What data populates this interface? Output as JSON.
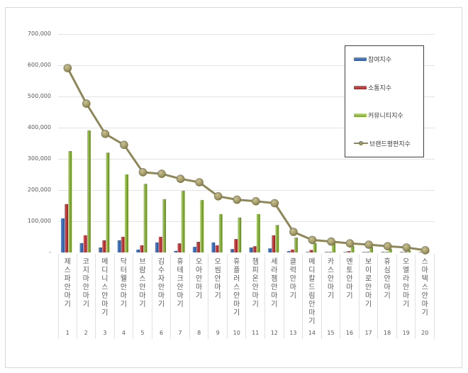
{
  "chart_data": {
    "type": "bar",
    "title": "",
    "xlabel": "",
    "ylabel": "",
    "ylim": [
      0,
      700000
    ],
    "grid": true,
    "legend_position": "right-top-inside",
    "yticks": [
      "-",
      "100,000",
      "200,000",
      "300,000",
      "400,000",
      "500,000",
      "600,000",
      "700,000"
    ],
    "ytick_values": [
      0,
      100000,
      200000,
      300000,
      400000,
      500000,
      600000,
      700000
    ],
    "categories": [
      "제스파 안마기",
      "코지마 안마기",
      "메디니스 안마기",
      "닥터웰 안마기",
      "브람스 안마기",
      "김수자 안마기",
      "휴테크 안마기",
      "오아 안마기",
      "오씸 안마기",
      "휴플러스 안마기",
      "챔피온 안마기",
      "세라젬 안마기",
      "클럭 안마기",
      "메디칼드림 안마기",
      "카스 안마기",
      "멘토 안마기",
      "보이로 안마기",
      "휴심 안마기",
      "오엘라 안마기",
      "스마텍스 안마기"
    ],
    "category_numbers": [
      "1",
      "2",
      "3",
      "4",
      "5",
      "6",
      "7",
      "8",
      "9",
      "10",
      "11",
      "12",
      "13",
      "14",
      "15",
      "16",
      "17",
      "18",
      "19",
      "20"
    ],
    "series": [
      {
        "name": "참여지수",
        "type": "bar",
        "color": "#3a6db5",
        "values": [
          109000,
          30000,
          16000,
          39000,
          9000,
          32000,
          5000,
          18000,
          32000,
          11000,
          16000,
          13000,
          4000,
          1000,
          1000,
          1000,
          1000,
          1000,
          1000,
          500
        ]
      },
      {
        "name": "소통지수",
        "type": "bar",
        "color": "#c0393a",
        "values": [
          155000,
          55000,
          39000,
          50000,
          23000,
          50000,
          29000,
          34000,
          23000,
          43000,
          20000,
          55000,
          9000,
          8000,
          1000,
          4000,
          1500,
          1500,
          1000,
          500
        ]
      },
      {
        "name": "커뮤니티지수",
        "type": "bar",
        "color": "#8ab33f",
        "values": [
          325000,
          391000,
          320000,
          250000,
          220000,
          171000,
          198000,
          168000,
          123000,
          112000,
          123000,
          88000,
          48000,
          30000,
          31000,
          21000,
          18000,
          12000,
          7000,
          1000
        ]
      },
      {
        "name": "브랜드평판지수",
        "type": "line",
        "color": "#8e8757",
        "values": [
          591000,
          477000,
          380000,
          345000,
          257000,
          252000,
          236000,
          225000,
          180000,
          169000,
          164000,
          158000,
          66000,
          40000,
          35000,
          29000,
          25000,
          20000,
          16000,
          7000
        ]
      }
    ]
  },
  "legend": {
    "items": [
      {
        "label": "참여지수",
        "color": "#3a6db5"
      },
      {
        "label": "소통지수",
        "color": "#c0393a"
      },
      {
        "label": "커뮤니티지수",
        "color": "#8ab33f"
      },
      {
        "label": "브랜드평판지수",
        "color": "#8e8757"
      }
    ]
  }
}
